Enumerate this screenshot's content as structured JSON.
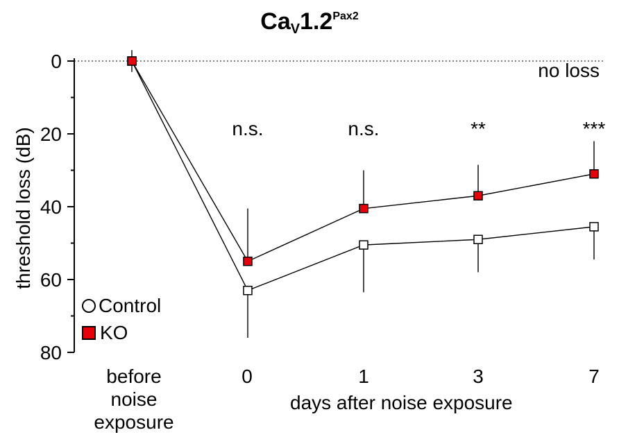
{
  "chart_data": {
    "type": "line",
    "title": {
      "main": "Ca",
      "sub": "V",
      "rest": "1.2",
      "sup": "Pax2"
    },
    "ylabel": "threshold loss (dB)",
    "xlabel": "days after noise exposure",
    "categories": [
      "before noise exposure",
      "0",
      "1",
      "3",
      "7"
    ],
    "category_lines": [
      [
        "before",
        "noise",
        "exposure"
      ],
      [
        "0"
      ],
      [
        "1"
      ],
      [
        "3"
      ],
      [
        "7"
      ]
    ],
    "ylim": [
      0,
      80
    ],
    "y_inverted": true,
    "yticks": [
      0,
      20,
      40,
      60,
      80
    ],
    "reference_line": {
      "value": 0,
      "label": "no loss"
    },
    "significance": [
      "",
      "n.s.",
      "n.s.",
      "**",
      "***"
    ],
    "series": [
      {
        "name": "Control",
        "marker": "square-open",
        "legend_marker": "circle-open",
        "color": "#ffffff",
        "values": [
          0,
          63,
          50.5,
          49,
          45.5
        ],
        "err_low": [
          3,
          13,
          13,
          9,
          9
        ],
        "err_high": [
          0,
          0,
          0,
          0,
          0
        ]
      },
      {
        "name": "KO",
        "marker": "square-filled",
        "legend_marker": "square-filled",
        "color": "#e8000b",
        "values": [
          0,
          55,
          40.5,
          37,
          31
        ],
        "err_low": [
          0,
          0,
          0,
          0,
          0
        ],
        "err_high": [
          3,
          14.5,
          10.5,
          8.5,
          9
        ]
      }
    ]
  }
}
